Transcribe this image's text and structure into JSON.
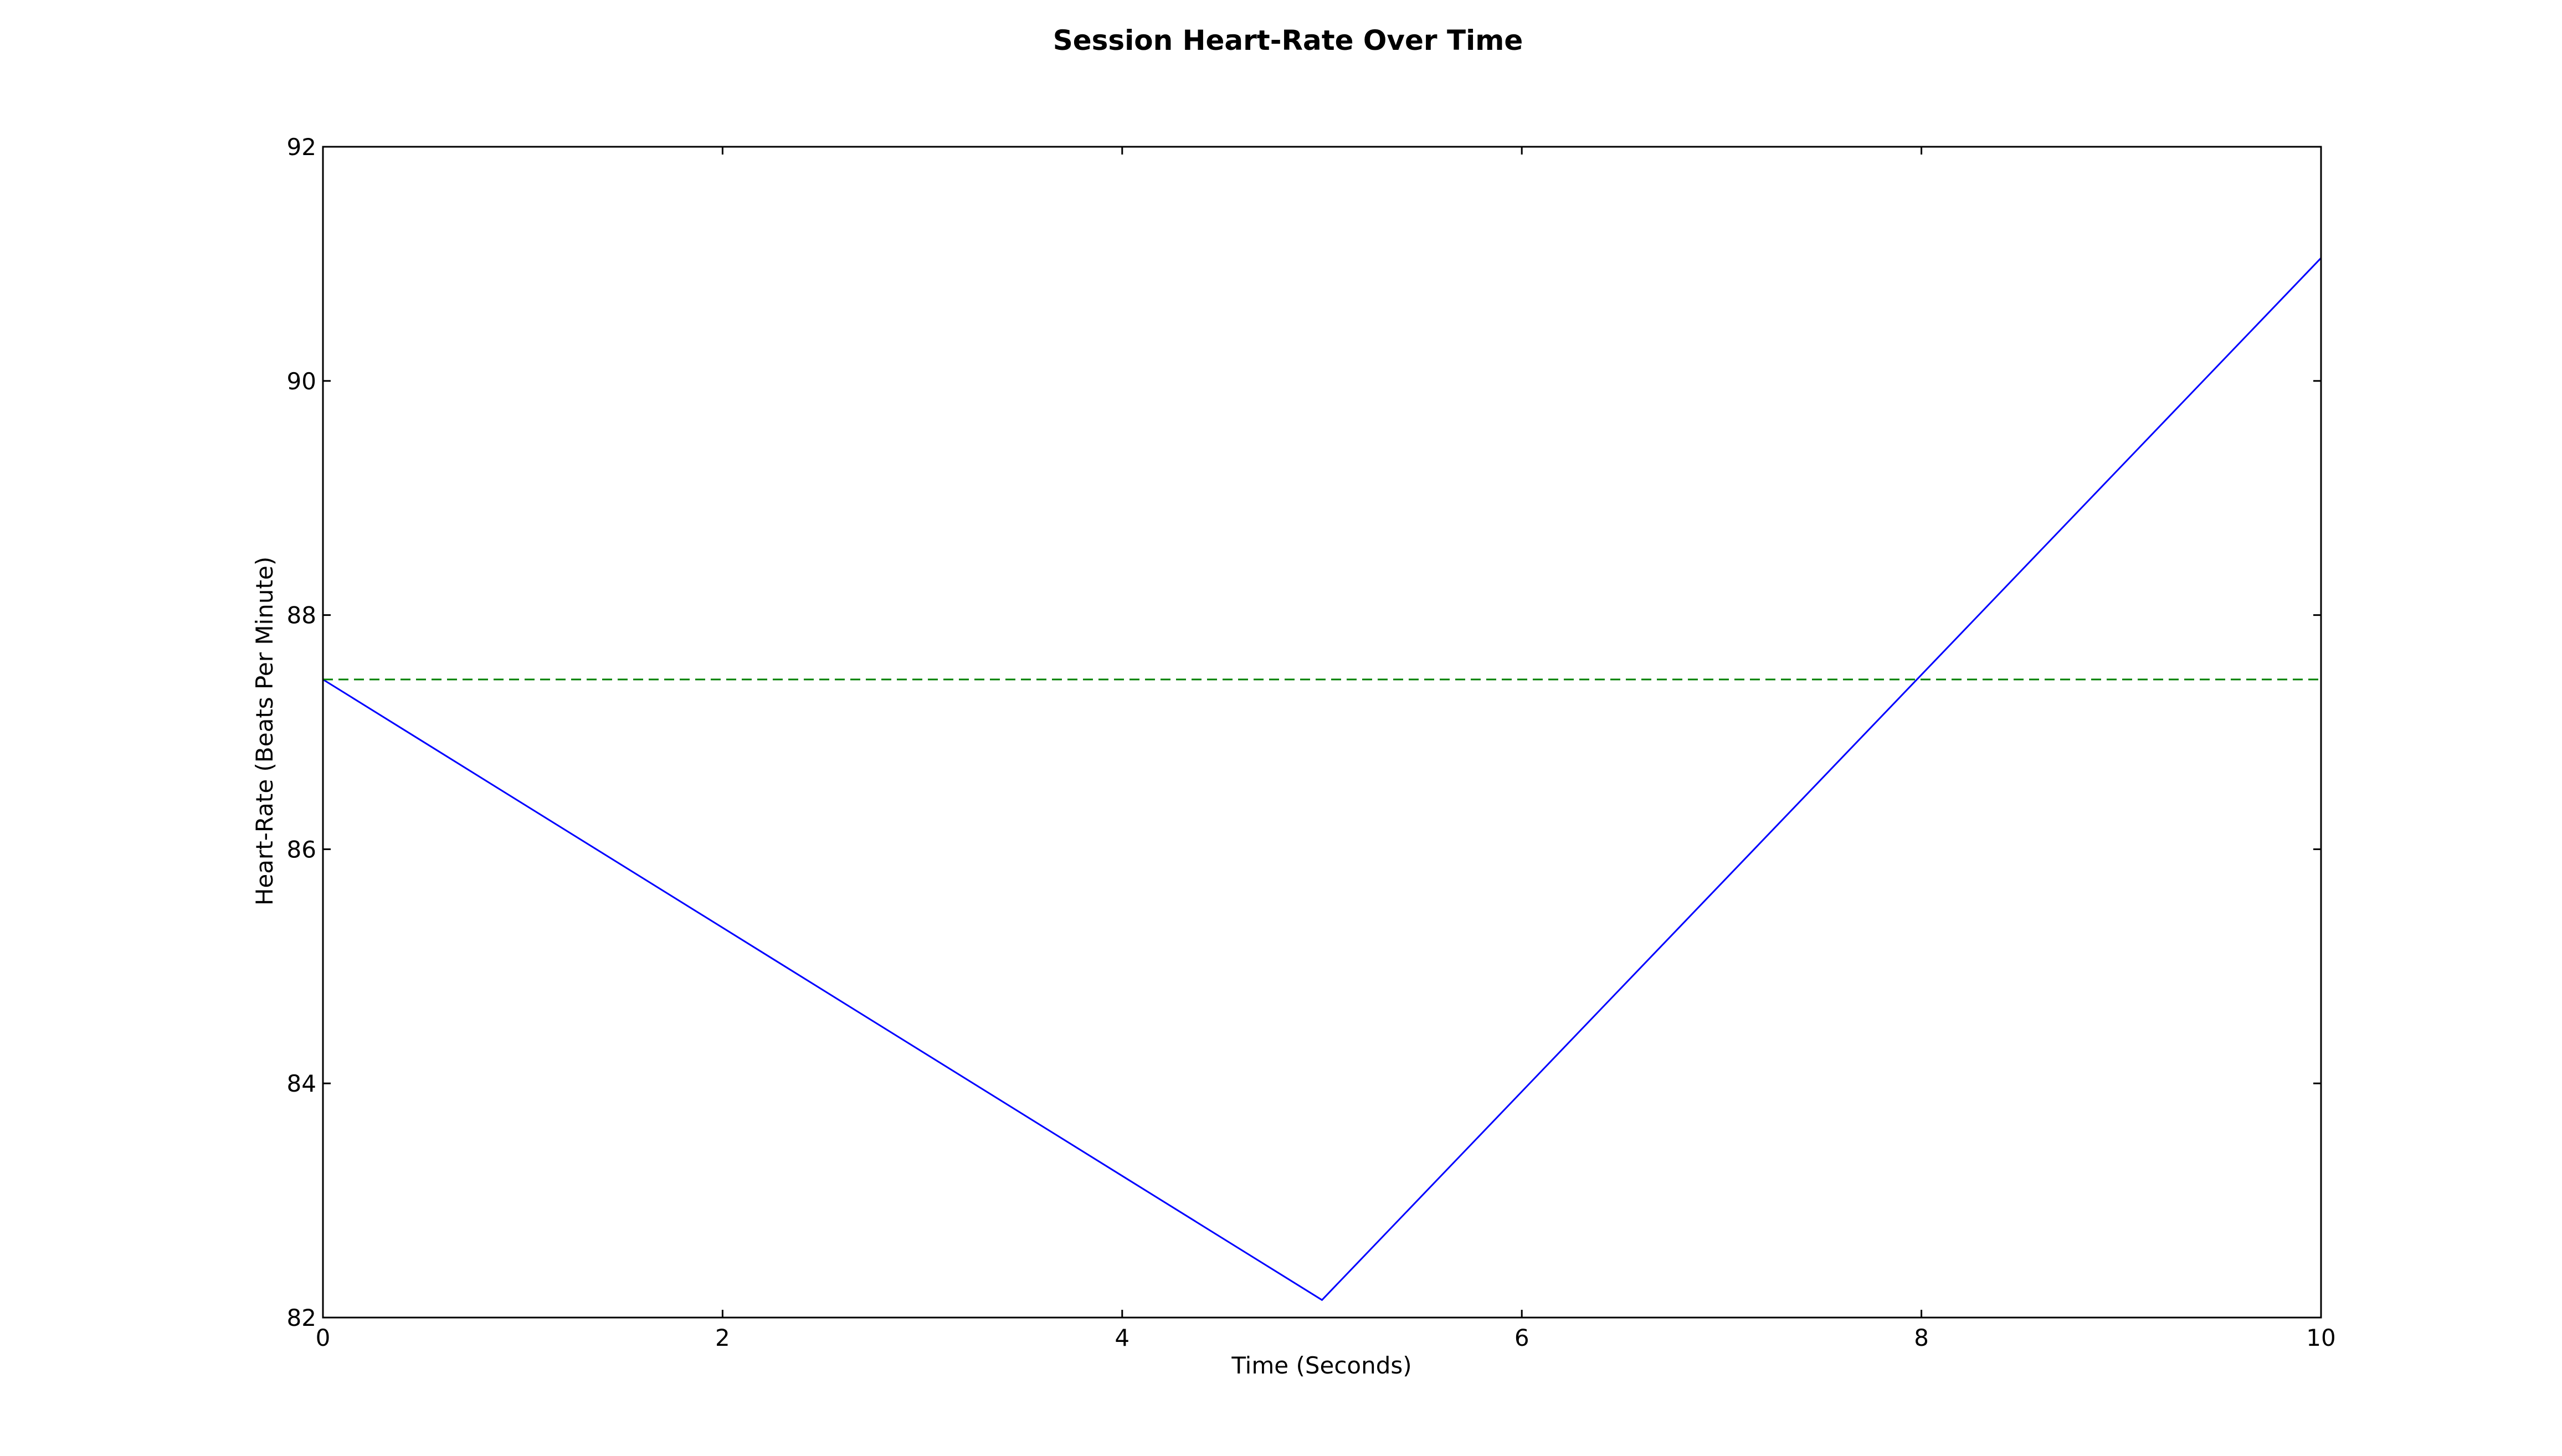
{
  "chart_data": {
    "type": "line",
    "title": "Session Heart-Rate Over Time",
    "xlabel": "Time (Seconds)",
    "ylabel": "Heart-Rate (Beats Per Minute)",
    "xlim": [
      0,
      10
    ],
    "ylim": [
      82,
      92
    ],
    "x_ticks": [
      0,
      2,
      4,
      6,
      8,
      10
    ],
    "y_ticks": [
      82,
      84,
      86,
      88,
      90,
      92
    ],
    "x_tick_labels": [
      "0",
      "2",
      "4",
      "6",
      "8",
      "10"
    ],
    "y_tick_labels": [
      "82",
      "84",
      "86",
      "88",
      "90",
      "92"
    ],
    "grid": false,
    "legend": "none",
    "series": [
      {
        "style": "solid",
        "color": "#0000ff",
        "x": [
          0,
          5,
          10
        ],
        "y": [
          87.45,
          82.15,
          91.05
        ]
      },
      {
        "style": "dashed",
        "color": "#008000",
        "x": [
          0,
          10
        ],
        "y": [
          87.45,
          87.45
        ]
      }
    ]
  }
}
